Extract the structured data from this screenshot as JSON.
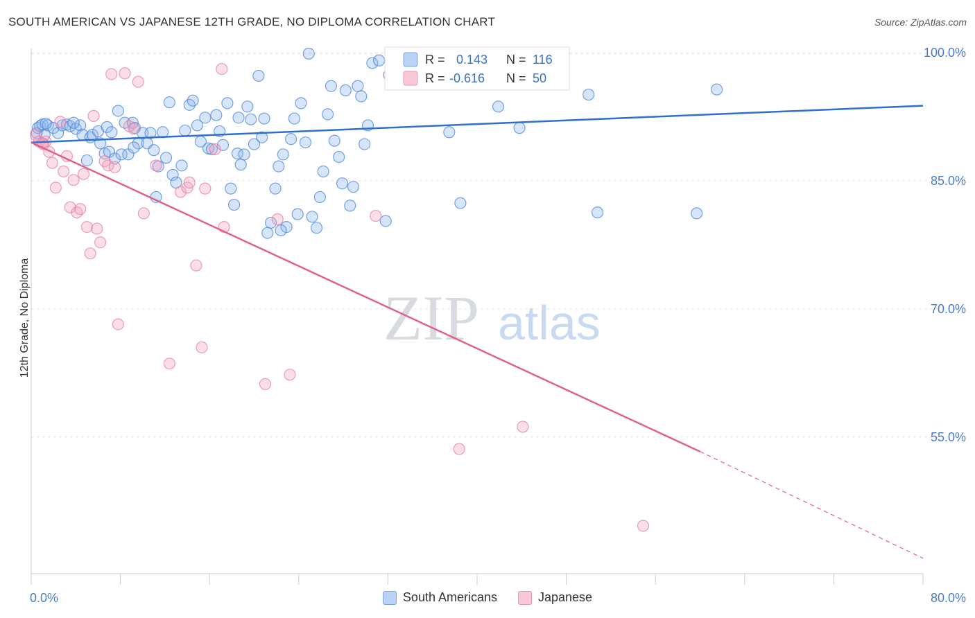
{
  "title": "SOUTH AMERICAN VS JAPANESE 12TH GRADE, NO DIPLOMA CORRELATION CHART",
  "source": "Source: ZipAtlas.com",
  "watermark": {
    "zip": "ZIP",
    "atlas": "atlas"
  },
  "colors": {
    "blue": "#4a86d8",
    "blue_line": "#2f6fce",
    "pink": "#e77fa4",
    "pink_line": "#e0608e",
    "axis_text": "#4a7cc9"
  },
  "legend_stats": [
    {
      "r_label": "R =",
      "r_value": "0.143",
      "n_label": "N =",
      "n_value": "116"
    },
    {
      "r_label": "R =",
      "r_value": "-0.616",
      "n_label": "N =",
      "n_value": "50"
    }
  ],
  "legend": {
    "south_americans": "South Americans",
    "japanese": "Japanese"
  },
  "chart_data": {
    "type": "scatter",
    "xlabel": "",
    "ylabel": "12th Grade, No Diploma",
    "xlim": [
      0,
      80
    ],
    "ylim": [
      39,
      100.5
    ],
    "x_tick_labels": [
      "0.0%",
      "80.0%"
    ],
    "y_ticks": [
      100,
      85,
      70,
      55
    ],
    "y_tick_labels": [
      "100.0%",
      "85.0%",
      "70.0%",
      "55.0%"
    ],
    "grid": true,
    "series": [
      {
        "name": "South Americans",
        "color": "#4a86d8",
        "trend": {
          "x": [
            0,
            80
          ],
          "y": [
            89.5,
            93.8
          ]
        },
        "points": [
          [
            0.5,
            90.6
          ],
          [
            0.6,
            91.2
          ],
          [
            0.8,
            91.4
          ],
          [
            1,
            91.6
          ],
          [
            1.2,
            90.4
          ],
          [
            1.5,
            91.5
          ],
          [
            2,
            91.2
          ],
          [
            2.4,
            90.6
          ],
          [
            2.8,
            91.5
          ],
          [
            3.2,
            91.6
          ],
          [
            3.5,
            91.4
          ],
          [
            4,
            91.1
          ],
          [
            4.4,
            91.5
          ],
          [
            4.6,
            90.4
          ],
          [
            5,
            87.4
          ],
          [
            5.3,
            90.1
          ],
          [
            5.5,
            90.4
          ],
          [
            6,
            90.8
          ],
          [
            6.2,
            89.4
          ],
          [
            6.6,
            88.2
          ],
          [
            6.8,
            91.3
          ],
          [
            7,
            88.4
          ],
          [
            7.2,
            90.7
          ],
          [
            7.5,
            87.6
          ],
          [
            7.8,
            93.2
          ],
          [
            8.1,
            88.1
          ],
          [
            8.4,
            91.8
          ],
          [
            8.7,
            88.1
          ],
          [
            9.1,
            91.8
          ],
          [
            9.3,
            91.2
          ],
          [
            9.6,
            89.4
          ],
          [
            10,
            90.6
          ],
          [
            10.4,
            89.4
          ],
          [
            10.7,
            90.6
          ],
          [
            11,
            88.6
          ],
          [
            11.2,
            83.1
          ],
          [
            11.4,
            86.7
          ],
          [
            11.8,
            90.7
          ],
          [
            12.1,
            87.7
          ],
          [
            12.4,
            94.2
          ],
          [
            12.7,
            85.7
          ],
          [
            13,
            84.8
          ],
          [
            13.5,
            86.8
          ],
          [
            13.8,
            90.9
          ],
          [
            14.2,
            93.9
          ],
          [
            14.5,
            94.4
          ],
          [
            14.9,
            91.5
          ],
          [
            15.2,
            89.6
          ],
          [
            15.6,
            92.4
          ],
          [
            15.9,
            88.8
          ],
          [
            16.2,
            88.7
          ],
          [
            16.6,
            92.7
          ],
          [
            16.9,
            90.8
          ],
          [
            17.2,
            89.2
          ],
          [
            17.6,
            94.1
          ],
          [
            17.9,
            84.1
          ],
          [
            18.2,
            82.2
          ],
          [
            18.5,
            88.2
          ],
          [
            18.8,
            86.9
          ],
          [
            19.1,
            88.1
          ],
          [
            19.4,
            93.7
          ],
          [
            19.7,
            92.2
          ],
          [
            20,
            89.3
          ],
          [
            20.4,
            97.3
          ],
          [
            20.7,
            90.1
          ],
          [
            20.9,
            92.3
          ],
          [
            21.2,
            78.9
          ],
          [
            21.5,
            80.1
          ],
          [
            21.9,
            84.1
          ],
          [
            22.2,
            86.7
          ],
          [
            22.6,
            88.1
          ],
          [
            22.9,
            79.6
          ],
          [
            23.3,
            89.9
          ],
          [
            23.6,
            92.3
          ],
          [
            23.9,
            81.1
          ],
          [
            24.2,
            94.1
          ],
          [
            24.6,
            89.5
          ],
          [
            24.9,
            99.9
          ],
          [
            25.2,
            80.8
          ],
          [
            25.6,
            79.5
          ],
          [
            25.9,
            83.1
          ],
          [
            26.2,
            86.1
          ],
          [
            26.6,
            92.8
          ],
          [
            26.9,
            96.1
          ],
          [
            27.2,
            89.7
          ],
          [
            27.6,
            87.8
          ],
          [
            27.9,
            84.7
          ],
          [
            28.2,
            95.6
          ],
          [
            28.6,
            82.1
          ],
          [
            28.9,
            84.3
          ],
          [
            29.3,
            96.1
          ],
          [
            29.6,
            94.9
          ],
          [
            29.9,
            89.3
          ],
          [
            30.2,
            91.5
          ],
          [
            30.6,
            98.8
          ],
          [
            31.2,
            99.1
          ],
          [
            31.8,
            80.3
          ],
          [
            32.1,
            97.4
          ],
          [
            32.5,
            98.2
          ],
          [
            32.9,
            99.9
          ],
          [
            36.2,
            99.6
          ],
          [
            37.5,
            90.7
          ],
          [
            38.5,
            82.4
          ],
          [
            38.9,
            99.8
          ],
          [
            39.9,
            98.6
          ],
          [
            41.9,
            93.7
          ],
          [
            43.8,
            91.2
          ],
          [
            50,
            95.1
          ],
          [
            50.8,
            81.3
          ],
          [
            59.7,
            81.2
          ],
          [
            61.5,
            95.7
          ],
          [
            1.3,
            91.7
          ],
          [
            3.8,
            91.8
          ],
          [
            9.2,
            88.9
          ],
          [
            18.6,
            92.4
          ],
          [
            22.4,
            79.2
          ]
        ]
      },
      {
        "name": "Japanese",
        "color": "#e77fa4",
        "trend": {
          "x": [
            0,
            60
          ],
          "y": [
            89.5,
            53.3
          ]
        },
        "dashed": {
          "x": [
            60,
            80
          ],
          "y": [
            53.3,
            40.8
          ]
        },
        "points": [
          [
            0.4,
            90.4
          ],
          [
            0.7,
            89.6
          ],
          [
            1,
            89.4
          ],
          [
            1.3,
            89.6
          ],
          [
            1.6,
            88.4
          ],
          [
            1.9,
            87.1
          ],
          [
            2.2,
            84.2
          ],
          [
            2.6,
            91.9
          ],
          [
            2.9,
            86.1
          ],
          [
            3.2,
            87.9
          ],
          [
            3.5,
            81.9
          ],
          [
            3.8,
            85.1
          ],
          [
            4.1,
            81.3
          ],
          [
            4.4,
            81.7
          ],
          [
            4.7,
            85.8
          ],
          [
            5,
            79.6
          ],
          [
            5.3,
            76.5
          ],
          [
            5.6,
            92.6
          ],
          [
            5.9,
            79.4
          ],
          [
            6.2,
            77.8
          ],
          [
            6.6,
            87.3
          ],
          [
            6.9,
            86.8
          ],
          [
            7.2,
            97.5
          ],
          [
            7.5,
            86.6
          ],
          [
            7.8,
            68.2
          ],
          [
            8.4,
            97.6
          ],
          [
            8.8,
            91.4
          ],
          [
            9.2,
            91.1
          ],
          [
            9.6,
            96.6
          ],
          [
            10.1,
            81.2
          ],
          [
            11.2,
            86.8
          ],
          [
            12.4,
            63.6
          ],
          [
            13.4,
            83.7
          ],
          [
            14,
            84.2
          ],
          [
            14.2,
            84.8
          ],
          [
            14.8,
            75.1
          ],
          [
            15.3,
            65.5
          ],
          [
            15.6,
            84.1
          ],
          [
            16.5,
            88.7
          ],
          [
            17.1,
            98.1
          ],
          [
            17.3,
            79.6
          ],
          [
            21,
            61.2
          ],
          [
            22.1,
            80.5
          ],
          [
            23.2,
            62.3
          ],
          [
            30.9,
            80.9
          ],
          [
            38.4,
            53.6
          ],
          [
            40.1,
            99.9
          ],
          [
            44.1,
            56.2
          ],
          [
            54.9,
            44.6
          ],
          [
            1.1,
            89.3
          ]
        ]
      }
    ]
  }
}
